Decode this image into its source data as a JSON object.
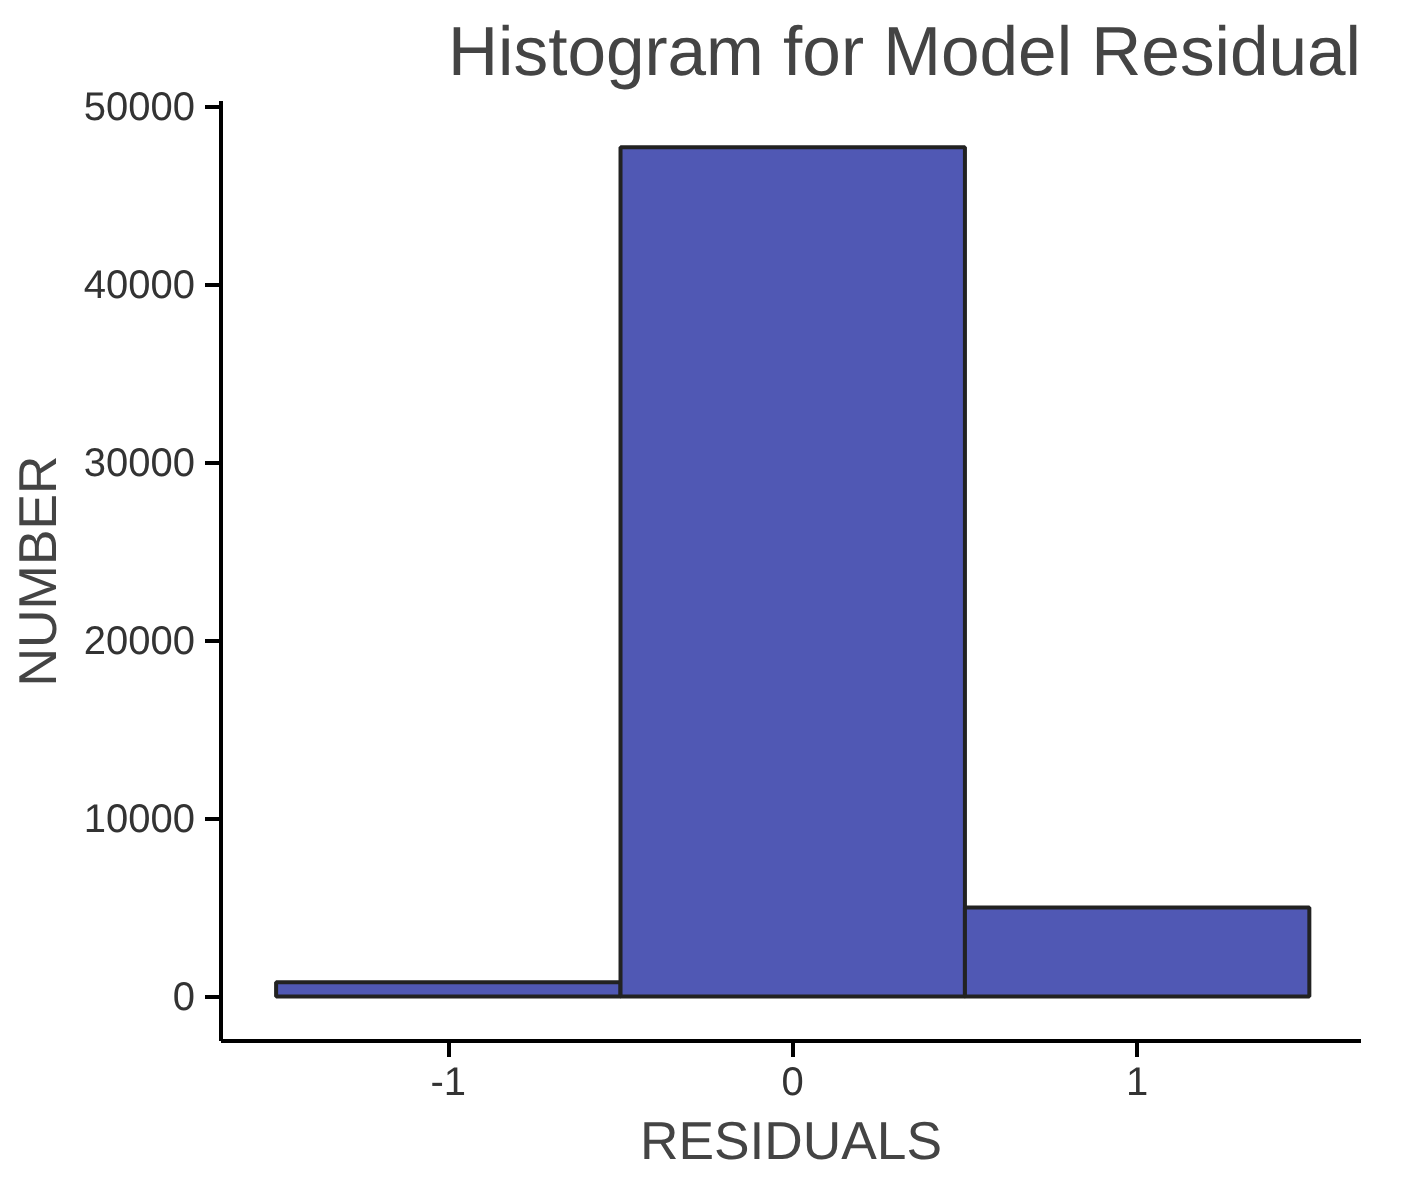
{
  "chart_data": {
    "type": "histogram",
    "title": "Histogram for Model Residual",
    "xlabel": "RESIDUALS",
    "ylabel": "NUMBER",
    "bins": [
      -1.5,
      -0.5,
      0.5,
      1.5
    ],
    "values": [
      800,
      47700,
      5000
    ],
    "color": "#5058b4",
    "xlim": [
      -1.66,
      1.65
    ],
    "ylim": [
      -2500,
      50300
    ],
    "xticks": [
      -1,
      0,
      1
    ],
    "yticks": [
      0,
      10000,
      20000,
      30000,
      40000,
      50000
    ],
    "grid": false
  }
}
